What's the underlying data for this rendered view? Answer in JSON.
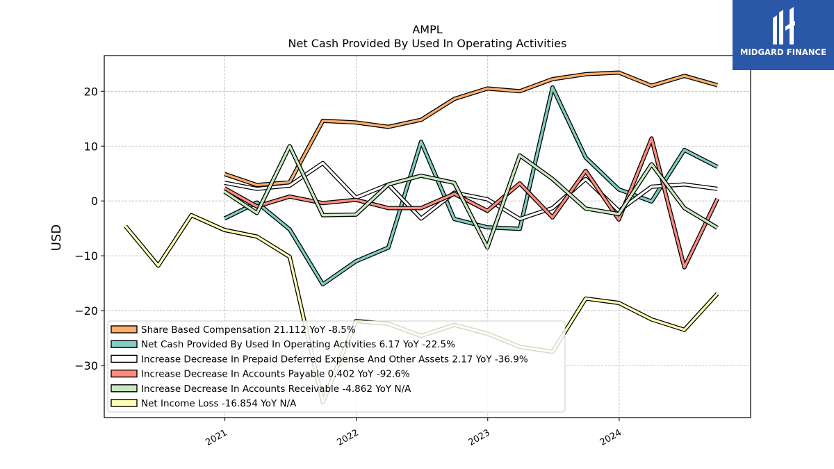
{
  "chart_data": {
    "type": "line",
    "title": "AMPL",
    "subtitle": "Net Cash Provided By Used In Operating Activities",
    "xlabel": "",
    "ylabel": "USD",
    "x_ticks": [
      "2021",
      "2022",
      "2023",
      "2024"
    ],
    "y_ticks": [
      -30,
      -20,
      -10,
      0,
      10,
      20
    ],
    "ylim": [
      -39.5,
      26.5
    ],
    "xlim": [
      "2020-02-01",
      "2024-12-31"
    ],
    "grid": true,
    "legend_position": "lower-left",
    "series": [
      {
        "name": "Share Based Compensation  21.112 YoY -8.5%",
        "color": "#fdae6b",
        "x": [
          "2020-12-31",
          "2021-03-31",
          "2021-06-30",
          "2021-09-30",
          "2021-12-31",
          "2022-03-31",
          "2022-06-30",
          "2022-09-30",
          "2022-12-31",
          "2023-03-31",
          "2023-06-30",
          "2023-09-30",
          "2023-12-31",
          "2024-03-31",
          "2024-06-30",
          "2024-09-30"
        ],
        "y": [
          4.9,
          2.9,
          3.4,
          14.6,
          14.3,
          13.5,
          14.8,
          18.6,
          20.5,
          20.0,
          22.2,
          23.1,
          23.4,
          21.0,
          22.8,
          21.1
        ]
      },
      {
        "name": "Net Cash Provided By Used In Operating Activities  6.17 YoY -22.5%",
        "color": "#80cdc1",
        "x": [
          "2020-12-31",
          "2021-03-31",
          "2021-06-30",
          "2021-09-30",
          "2021-12-31",
          "2022-03-31",
          "2022-06-30",
          "2022-09-30",
          "2022-12-31",
          "2023-03-31",
          "2023-06-30",
          "2023-09-30",
          "2023-12-31",
          "2024-03-31",
          "2024-06-30",
          "2024-09-30"
        ],
        "y": [
          -3.2,
          -0.3,
          -5.2,
          -15.2,
          -11.0,
          -8.5,
          10.8,
          -3.3,
          -4.8,
          -5.1,
          20.7,
          7.9,
          2.1,
          -0.1,
          9.3,
          6.2
        ]
      },
      {
        "name": "Increase Decrease In Prepaid Deferred Expense And Other Assets  2.17 YoY -36.9%",
        "color": "#ffffff",
        "x": [
          "2020-12-31",
          "2021-03-31",
          "2021-06-30",
          "2021-09-30",
          "2021-12-31",
          "2022-03-31",
          "2022-06-30",
          "2022-09-30",
          "2022-12-31",
          "2023-03-31",
          "2023-06-30",
          "2023-09-30",
          "2023-12-31",
          "2024-03-31",
          "2024-06-30",
          "2024-09-30"
        ],
        "y": [
          3.3,
          2.2,
          2.8,
          6.9,
          0.6,
          3.0,
          -3.2,
          1.5,
          0.3,
          -3.3,
          -1.3,
          4.0,
          -1.8,
          2.6,
          3.0,
          2.2
        ]
      },
      {
        "name": "Increase Decrease In Accounts Payable  0.402 YoY -92.6%",
        "color": "#fc8d7e",
        "x": [
          "2020-12-31",
          "2021-03-31",
          "2021-06-30",
          "2021-09-30",
          "2021-12-31",
          "2022-03-31",
          "2022-06-30",
          "2022-09-30",
          "2022-12-31",
          "2023-03-31",
          "2023-06-30",
          "2023-09-30",
          "2023-12-31",
          "2024-03-31",
          "2024-06-30",
          "2024-09-30"
        ],
        "y": [
          2.3,
          -1.0,
          0.8,
          -0.4,
          0.2,
          -1.3,
          -1.3,
          1.3,
          -1.8,
          3.2,
          -3.0,
          5.5,
          -3.4,
          11.4,
          -12.1,
          0.4
        ]
      },
      {
        "name": "Increase Decrease In Accounts Receivable  -4.862 YoY N/A",
        "color": "#c7e9c0",
        "x": [
          "2020-12-31",
          "2021-03-31",
          "2021-06-30",
          "2021-09-30",
          "2021-12-31",
          "2022-03-31",
          "2022-06-30",
          "2022-09-30",
          "2022-12-31",
          "2023-03-31",
          "2023-06-30",
          "2023-09-30",
          "2023-12-31",
          "2024-03-31",
          "2024-06-30",
          "2024-09-30"
        ],
        "y": [
          1.7,
          -2.2,
          10.0,
          -2.6,
          -2.5,
          3.0,
          4.6,
          3.3,
          -8.5,
          8.3,
          4.0,
          -1.4,
          -2.4,
          6.7,
          -1.3,
          -4.9
        ]
      },
      {
        "name": "Net Income Loss  -16.854 YoY N/A",
        "color": "#ffffb3",
        "x": [
          "2020-03-31",
          "2020-06-30",
          "2020-09-30",
          "2020-12-31",
          "2021-03-31",
          "2021-06-30",
          "2021-09-30",
          "2021-12-31",
          "2022-03-31",
          "2022-06-30",
          "2022-09-30",
          "2022-12-31",
          "2023-03-31",
          "2023-06-30",
          "2023-09-30",
          "2023-12-31",
          "2024-03-31",
          "2024-06-30",
          "2024-09-30"
        ],
        "y": [
          -4.6,
          -11.8,
          -2.6,
          -5.3,
          -6.5,
          -10.2,
          -36.7,
          -21.9,
          -22.4,
          -24.6,
          -22.6,
          -24.2,
          -26.6,
          -27.5,
          -17.8,
          -18.6,
          -21.6,
          -23.5,
          -16.9
        ]
      }
    ]
  },
  "logo": {
    "text": "MIDGARD FINANCE",
    "icon": "midgard-logo-icon"
  }
}
